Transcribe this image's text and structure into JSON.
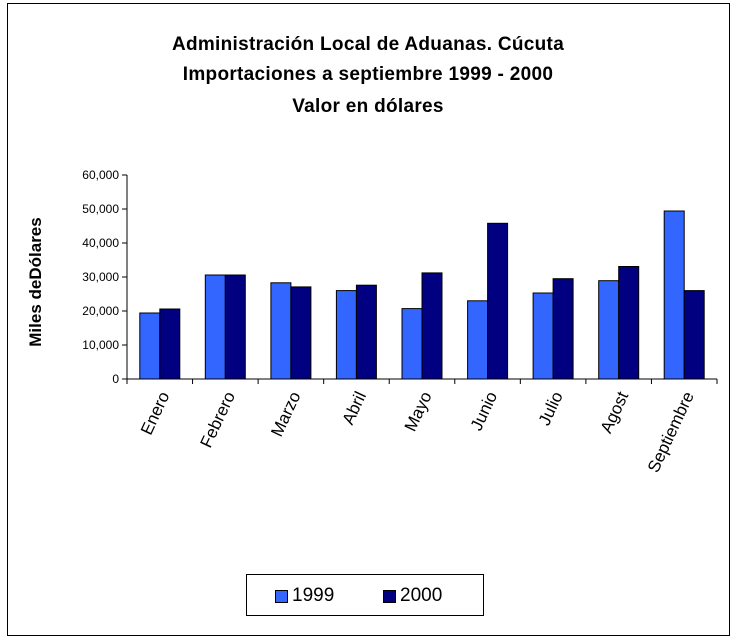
{
  "chart_data": {
    "type": "bar",
    "title": [
      "Administración Local de Aduanas. Cúcuta",
      "Importaciones a septiembre 1999 - 2000",
      "Valor en dólares"
    ],
    "xlabel": "",
    "ylabel": "Miles deDólares",
    "ylim": [
      0,
      60000
    ],
    "yticks": [
      "0",
      "10,000",
      "20,000",
      "30,000",
      "40,000",
      "50,000",
      "60,000"
    ],
    "categories": [
      "Enero",
      "Febrero",
      "Marzo",
      "Abril",
      "Mayo",
      "Junio",
      "Julio",
      "Agost",
      "Septiembre"
    ],
    "series": [
      {
        "name": "1999",
        "color": "#3366ff",
        "values": [
          19400,
          30600,
          28300,
          26000,
          20700,
          23000,
          25300,
          28900,
          49400
        ]
      },
      {
        "name": "2000",
        "color": "#000080",
        "values": [
          20600,
          30600,
          27100,
          27600,
          31200,
          45800,
          29500,
          33100,
          26000
        ]
      }
    ],
    "grid": false,
    "legend_position": "bottom"
  }
}
